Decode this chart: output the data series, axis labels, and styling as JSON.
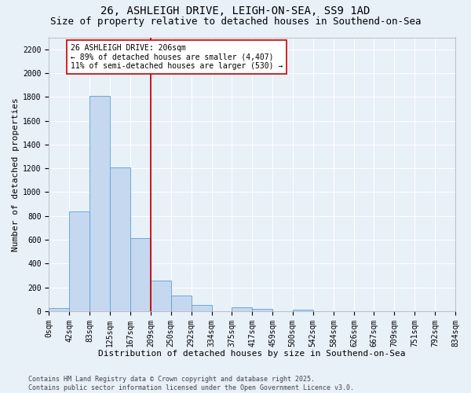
{
  "title1": "26, ASHLEIGH DRIVE, LEIGH-ON-SEA, SS9 1AD",
  "title2": "Size of property relative to detached houses in Southend-on-Sea",
  "xlabel": "Distribution of detached houses by size in Southend-on-Sea",
  "ylabel": "Number of detached properties",
  "bins": [
    0,
    42,
    83,
    125,
    167,
    209,
    250,
    292,
    334,
    375,
    417,
    459,
    500,
    542,
    584,
    626,
    667,
    709,
    751,
    792,
    834
  ],
  "counts": [
    25,
    840,
    1810,
    1210,
    610,
    255,
    130,
    50,
    0,
    30,
    20,
    0,
    10,
    0,
    0,
    0,
    0,
    0,
    0,
    0
  ],
  "bar_color": "#c5d8f0",
  "bar_edge_color": "#5a9fd4",
  "vline_x": 209,
  "vline_color": "#cc0000",
  "annotation_text": "26 ASHLEIGH DRIVE: 206sqm\n← 89% of detached houses are smaller (4,407)\n11% of semi-detached houses are larger (530) →",
  "annotation_box_color": "#ffffff",
  "annotation_box_edge": "#cc0000",
  "ylim": [
    0,
    2300
  ],
  "yticks": [
    0,
    200,
    400,
    600,
    800,
    1000,
    1200,
    1400,
    1600,
    1800,
    2000,
    2200
  ],
  "background_color": "#e8f0f8",
  "grid_color": "#ffffff",
  "footer": "Contains HM Land Registry data © Crown copyright and database right 2025.\nContains public sector information licensed under the Open Government Licence v3.0.",
  "title1_fontsize": 10,
  "title2_fontsize": 9,
  "xlabel_fontsize": 8,
  "ylabel_fontsize": 8,
  "tick_fontsize": 7,
  "annotation_fontsize": 7,
  "footer_fontsize": 6
}
